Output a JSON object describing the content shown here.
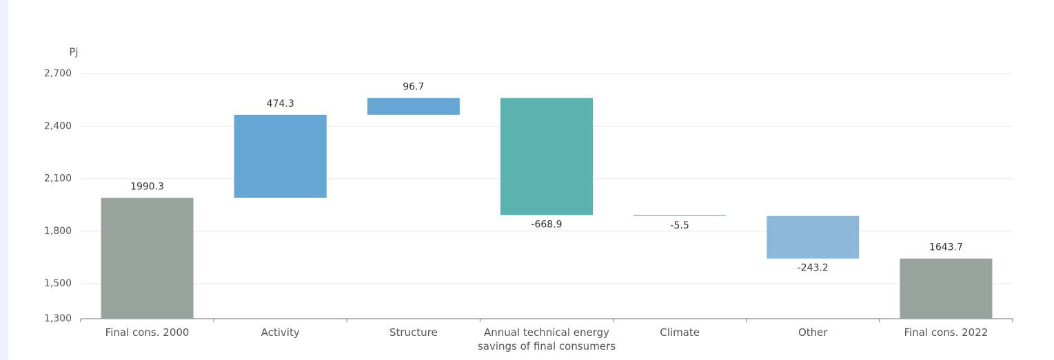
{
  "chart_data": {
    "type": "waterfall",
    "y_label": "Pj",
    "categories": [
      "Final cons. 2000",
      "Activity",
      "Structure",
      "Annual technical energy savings of final consumers",
      "Climate",
      "Other",
      "Final cons. 2022"
    ],
    "values": [
      1990.3,
      474.3,
      96.7,
      -668.9,
      -5.5,
      -243.2,
      1643.7
    ],
    "totals": [
      true,
      false,
      false,
      false,
      false,
      false,
      true
    ],
    "colors": [
      "#99a39e",
      "#65a6d4",
      "#65a6d4",
      "#5bb3b0",
      "#8cb9db",
      "#8cb9db",
      "#99a39e"
    ],
    "ylim": [
      1300,
      2700
    ],
    "yticks": [
      {
        "value": 1300,
        "label": "1,300"
      },
      {
        "value": 1500,
        "label": "1,500"
      },
      {
        "value": 1800,
        "label": "1,800"
      },
      {
        "value": 2100,
        "label": "2,100"
      },
      {
        "value": 2400,
        "label": "2,400"
      },
      {
        "value": 2700,
        "label": "2,700"
      }
    ],
    "grid": true
  }
}
